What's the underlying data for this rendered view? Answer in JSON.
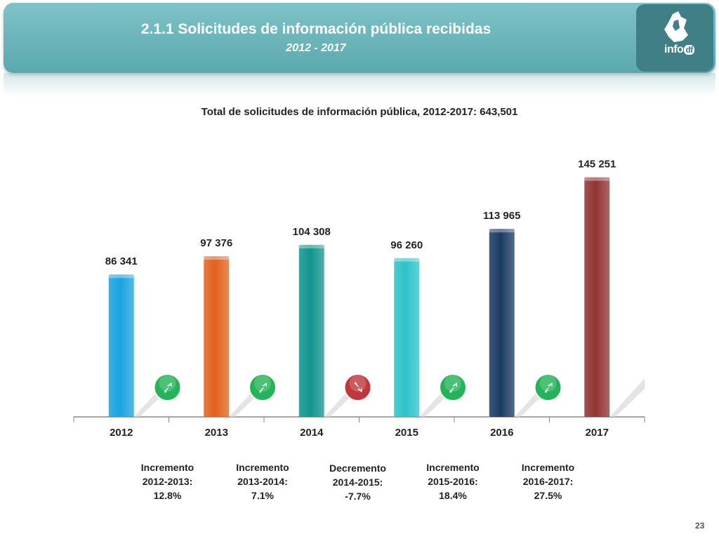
{
  "header": {
    "title": "2.1.1 Solicitudes de información pública recibidas",
    "subtitle": "2012 - 2017",
    "logo_text": "info",
    "logo_suffix": "df"
  },
  "total_label": "Total de solicitudes de información pública, 2012-2017: 643,501",
  "chart_data": {
    "type": "bar",
    "categories": [
      "2012",
      "2013",
      "2014",
      "2015",
      "2016",
      "2017"
    ],
    "values": [
      86341,
      97376,
      104308,
      96260,
      113965,
      145251
    ],
    "value_labels": [
      "86 341",
      "97 376",
      "104 308",
      "96 260",
      "113 965",
      "145 251"
    ],
    "bar_colors": [
      "#1aa3e0",
      "#e2621d",
      "#11958e",
      "#2cc3c8",
      "#1b3a63",
      "#913432"
    ],
    "ylim": [
      0,
      160000
    ],
    "grid": false,
    "legend": "none"
  },
  "changes": [
    {
      "direction": "up",
      "color": "#25b35a",
      "line1": "Incremento",
      "line2": "2012-2013:",
      "line3": "12.8%"
    },
    {
      "direction": "up",
      "color": "#25b35a",
      "line1": "Incremento",
      "line2": "2013-2014:",
      "line3": "7.1%"
    },
    {
      "direction": "down",
      "color": "#c0383b",
      "line1": "Decremento",
      "line2": "2014-2015:",
      "line3": "-7.7%"
    },
    {
      "direction": "up",
      "color": "#25b35a",
      "line1": "Incremento",
      "line2": "2015-2016:",
      "line3": "18.4%"
    },
    {
      "direction": "up",
      "color": "#25b35a",
      "line1": "Incremento",
      "line2": "2016-2017:",
      "line3": "27.5%"
    }
  ],
  "page_number": "23"
}
